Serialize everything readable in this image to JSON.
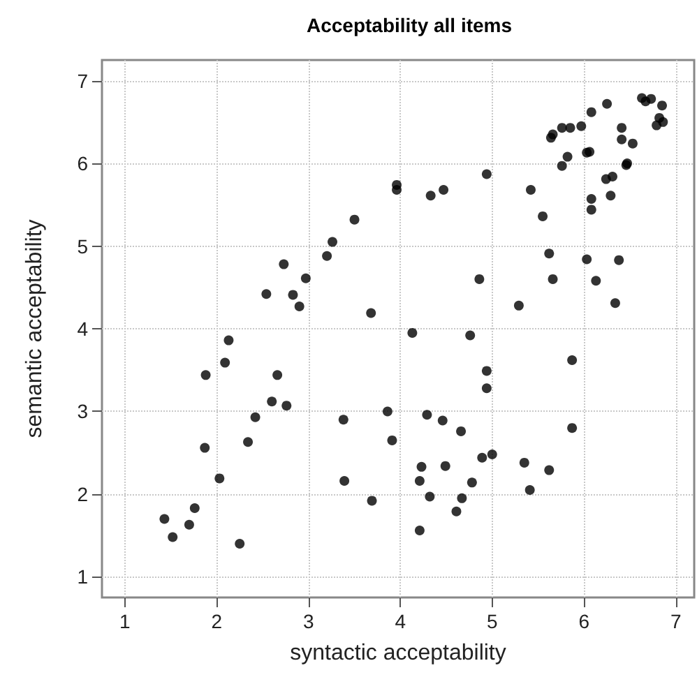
{
  "chart_data": {
    "type": "scatter",
    "title": "Acceptability all items",
    "xlabel": "syntactic acceptability",
    "ylabel": "semantic acceptability",
    "xlim": [
      0.75,
      7.2
    ],
    "ylim": [
      0.75,
      7.25
    ],
    "xticks": [
      1,
      2,
      3,
      4,
      5,
      6,
      7
    ],
    "yticks": [
      1,
      2,
      3,
      4,
      5,
      6,
      7
    ],
    "grid": true,
    "marker": "circle",
    "series": [
      {
        "color": "#000000",
        "x": [
          2.54,
          2.73,
          2.83,
          2.9,
          2.97,
          3.2,
          3.26,
          3.5,
          3.68,
          3.96,
          3.96,
          4.33,
          4.47,
          4.94,
          5.42,
          5.55,
          5.62,
          4.86,
          5.66,
          5.29,
          4.13,
          4.76,
          6.03,
          6.38,
          6.13,
          6.34,
          6.08,
          6.08,
          6.29,
          6.24,
          6.31,
          6.46,
          6.47,
          5.76,
          5.82,
          6.03,
          6.06,
          5.64,
          5.66,
          5.76,
          5.85,
          5.97,
          6.08,
          6.25,
          6.41,
          6.41,
          6.53,
          6.63,
          6.67,
          6.73,
          6.85,
          6.82,
          6.86,
          6.79,
          2.13,
          2.09,
          1.88,
          2.66,
          2.6,
          2.76,
          2.42,
          2.34,
          1.87,
          2.03,
          1.76,
          1.43,
          1.7,
          1.52,
          2.25,
          3.38,
          3.39,
          3.69,
          3.86,
          3.91,
          5.87,
          4.94,
          4.94,
          4.29,
          4.46,
          4.66,
          5.87,
          4.23,
          4.49,
          4.21,
          4.89,
          5.0,
          5.35,
          5.62,
          5.41,
          4.78,
          4.32,
          4.67,
          4.61,
          4.21
        ],
        "values": [
          4.42,
          4.78,
          4.41,
          4.27,
          4.61,
          4.88,
          5.05,
          5.32,
          4.19,
          5.74,
          5.68,
          5.61,
          5.68,
          5.87,
          5.68,
          5.36,
          4.91,
          4.6,
          4.6,
          4.28,
          3.95,
          3.92,
          4.84,
          4.83,
          4.58,
          4.31,
          5.57,
          5.44,
          5.61,
          5.81,
          5.84,
          5.98,
          6.0,
          5.97,
          6.08,
          6.13,
          6.14,
          6.31,
          6.35,
          6.43,
          6.43,
          6.45,
          6.62,
          6.72,
          6.43,
          6.29,
          6.24,
          6.79,
          6.75,
          6.78,
          6.7,
          6.55,
          6.5,
          6.46,
          3.86,
          3.59,
          3.44,
          3.44,
          3.12,
          3.07,
          2.93,
          2.63,
          2.56,
          2.19,
          1.83,
          1.7,
          1.63,
          1.48,
          1.4,
          2.9,
          2.16,
          1.92,
          3.0,
          2.65,
          3.62,
          3.49,
          3.28,
          2.96,
          2.89,
          2.76,
          2.8,
          2.33,
          2.34,
          2.16,
          2.44,
          2.48,
          2.38,
          2.29,
          2.05,
          2.14,
          1.97,
          1.95,
          1.79,
          1.56
        ]
      }
    ]
  }
}
